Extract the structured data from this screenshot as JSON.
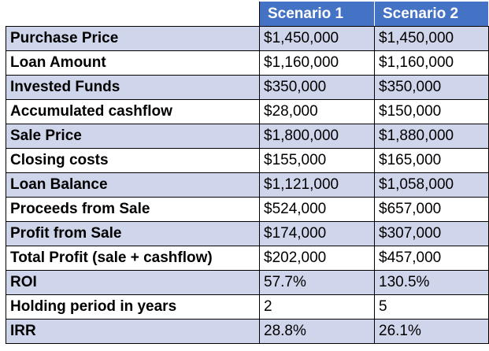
{
  "table": {
    "columns": [
      "",
      "Scenario 1",
      "Scenario 2"
    ],
    "rows": [
      {
        "label": "Purchase Price",
        "s1": "$1,450,000",
        "s2": "$1,450,000"
      },
      {
        "label": "Loan Amount",
        "s1": "$1,160,000",
        "s2": "$1,160,000"
      },
      {
        "label": "Invested Funds",
        "s1": "$350,000",
        "s2": "$350,000"
      },
      {
        "label": "Accumulated cashflow",
        "s1": "$28,000",
        "s2": "$150,000"
      },
      {
        "label": "Sale Price",
        "s1": "$1,800,000",
        "s2": "$1,880,000"
      },
      {
        "label": "Closing costs",
        "s1": "$155,000",
        "s2": "$165,000"
      },
      {
        "label": "Loan Balance",
        "s1": "$1,121,000",
        "s2": "$1,058,000"
      },
      {
        "label": "Proceeds from Sale",
        "s1": "$524,000",
        "s2": "$657,000"
      },
      {
        "label": "Profit from Sale",
        "s1": "$174,000",
        "s2": "$307,000"
      },
      {
        "label": "Total Profit (sale + cashflow)",
        "s1": "$202,000",
        "s2": "$457,000"
      },
      {
        "label": "ROI",
        "s1": "57.7%",
        "s2": "130.5%"
      },
      {
        "label": "Holding period in years",
        "s1": "2",
        "s2": "5"
      },
      {
        "label": "IRR",
        "s1": "28.8%",
        "s2": "26.1%"
      }
    ]
  },
  "colors": {
    "header": "#4472c4",
    "band_dark": "#cfd5ea",
    "band_light": "#e9ebf5"
  }
}
